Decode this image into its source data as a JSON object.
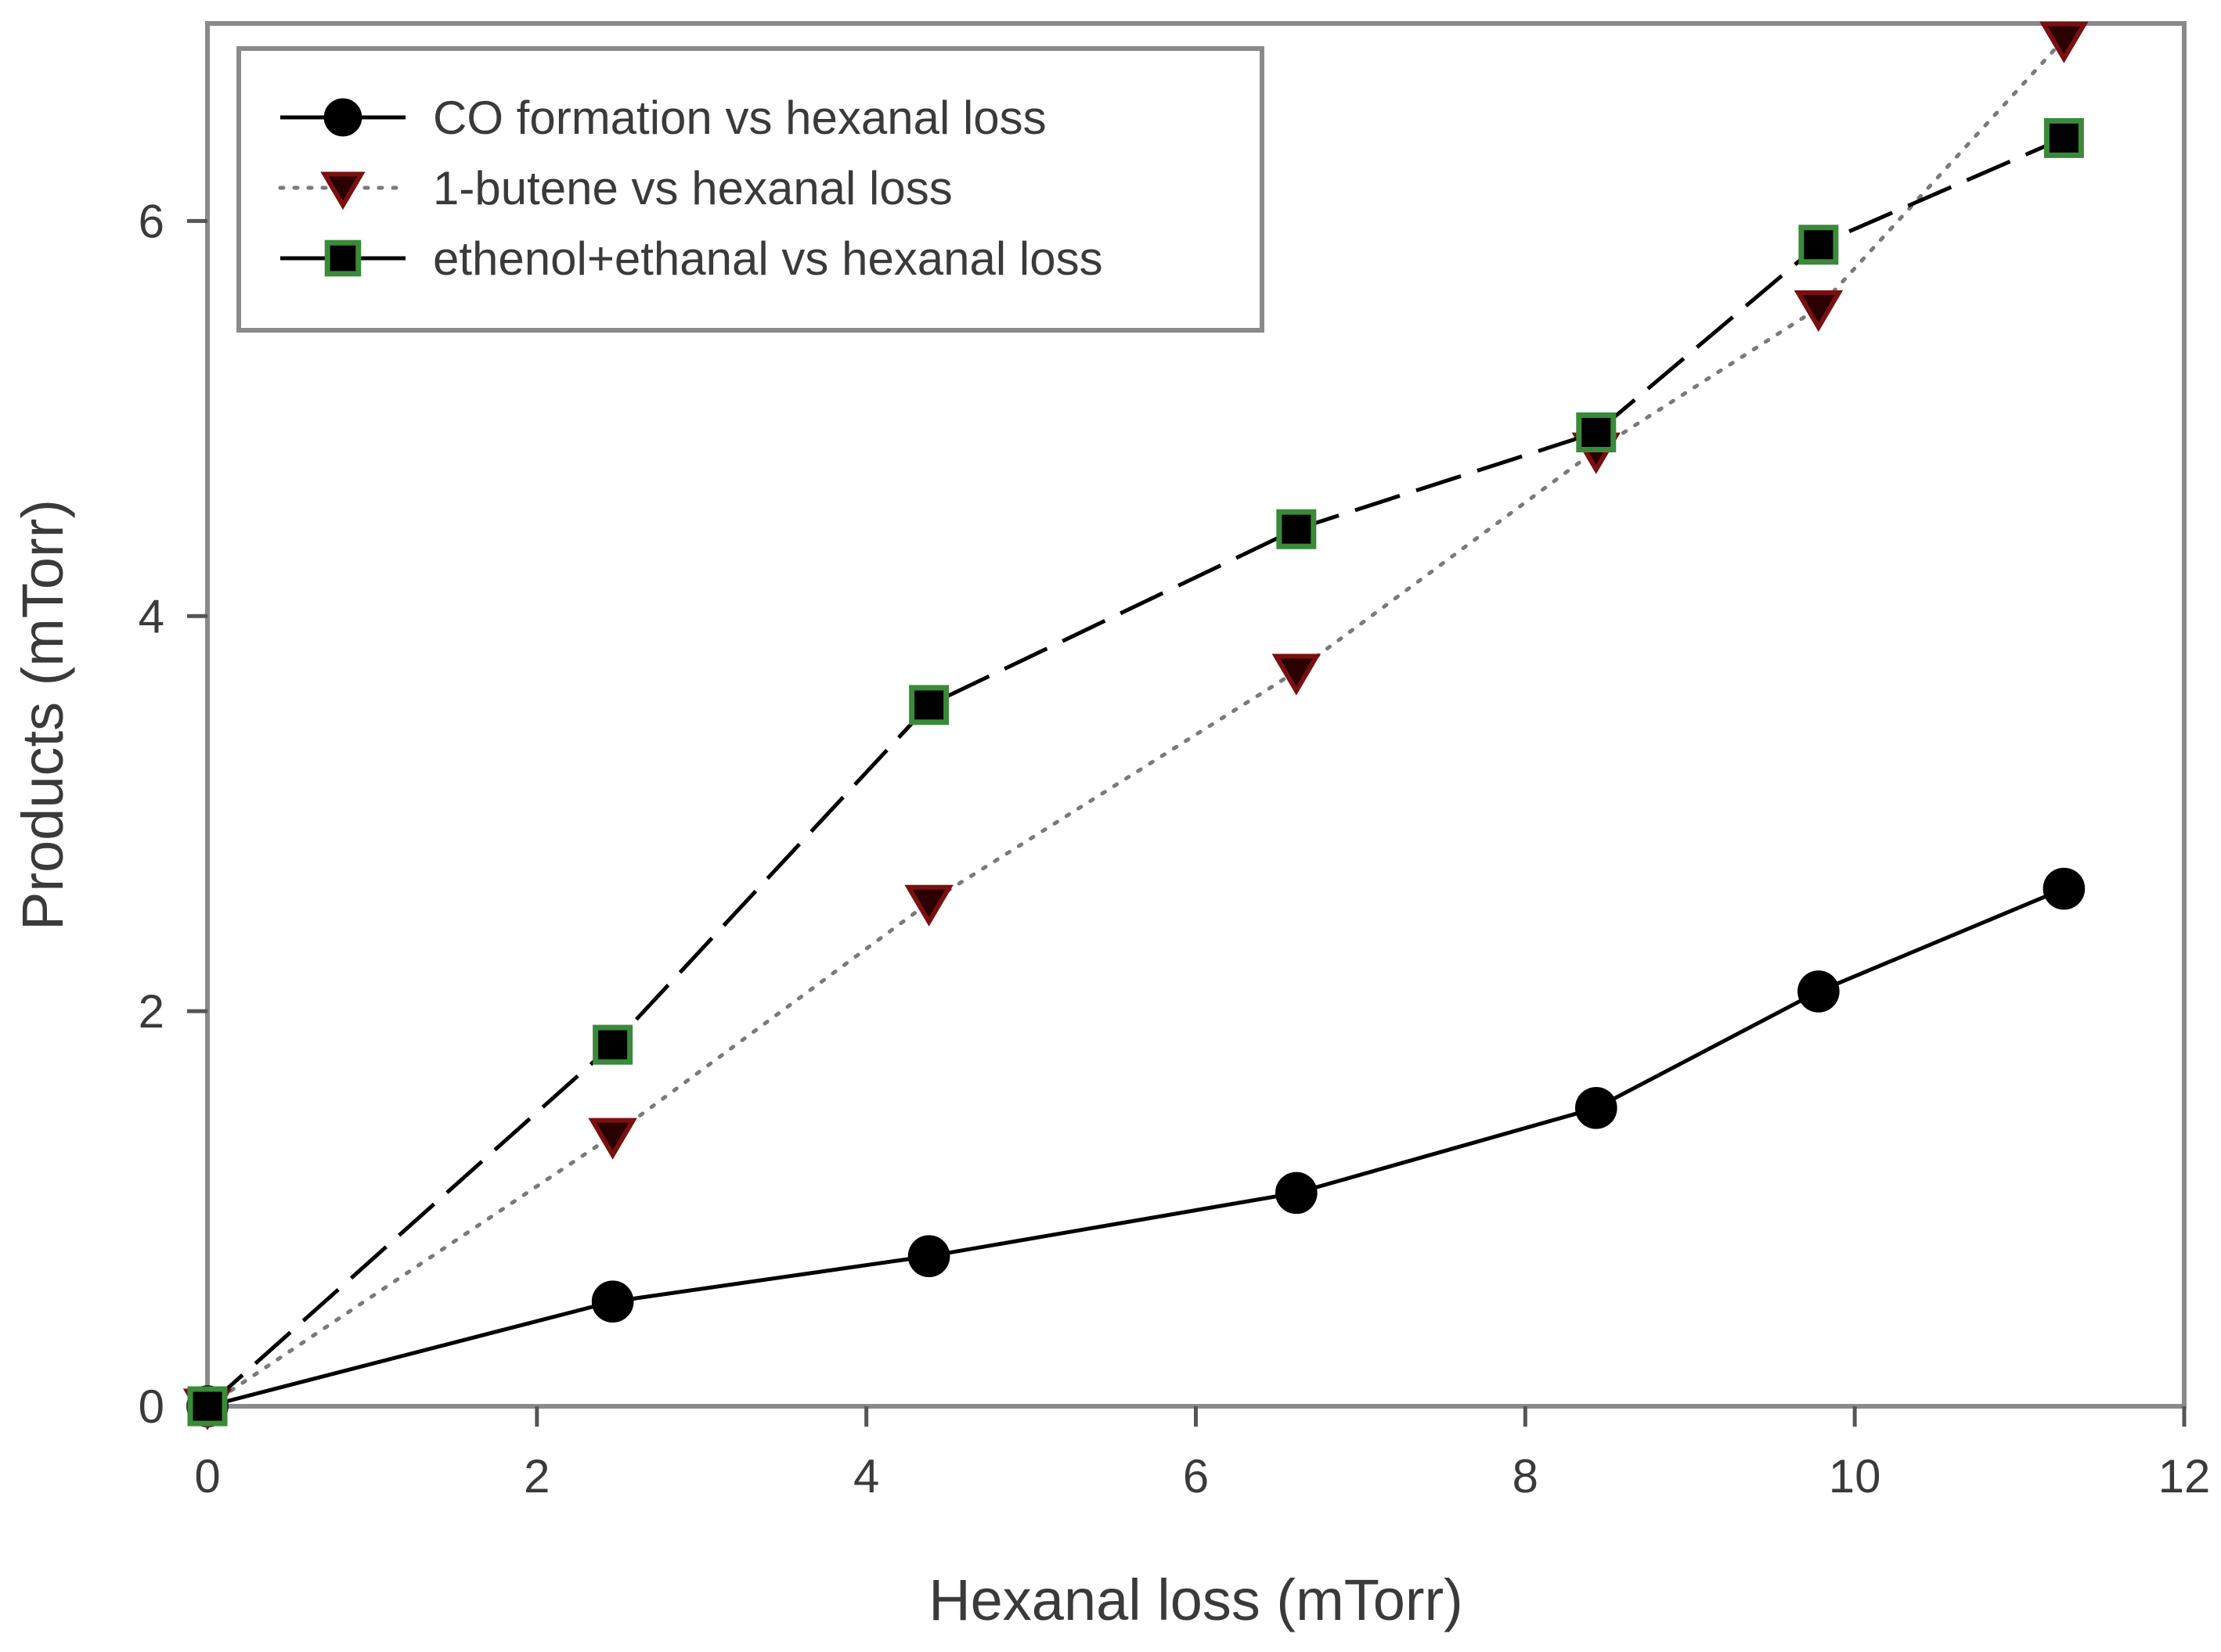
{
  "chart_data": {
    "type": "line",
    "title": "",
    "xlabel": "Hexanal loss (mTorr)",
    "ylabel": "Products (mTorr)",
    "xlim": [
      0,
      12
    ],
    "ylim": [
      0,
      7
    ],
    "xticks": [
      0,
      2,
      4,
      6,
      8,
      10,
      12
    ],
    "yticks": [
      0,
      2,
      4,
      6
    ],
    "grid": false,
    "legend_position": "top-left",
    "series": [
      {
        "name": "CO formation vs hexanal loss",
        "marker": "circle",
        "line_style": "solid",
        "color": "#000000",
        "marker_stroke": "#000000",
        "x": [
          0,
          2.46,
          4.38,
          6.61,
          8.43,
          9.78,
          11.27
        ],
        "y": [
          0,
          0.53,
          0.76,
          1.08,
          1.51,
          2.1,
          2.62
        ]
      },
      {
        "name": "1-butene vs hexanal loss",
        "marker": "triangle-down",
        "line_style": "dotted",
        "color": "#7a7a7a",
        "marker_fill": "#2a0000",
        "marker_stroke": "#7a1010",
        "x": [
          0,
          2.46,
          4.38,
          6.61,
          8.43,
          9.78,
          11.27
        ],
        "y": [
          0,
          1.37,
          2.55,
          3.72,
          4.84,
          5.56,
          6.92
        ]
      },
      {
        "name": "ethenol+ethanal vs hexanal loss",
        "marker": "square",
        "line_style": "dashed",
        "color": "#000000",
        "marker_fill": "#000000",
        "marker_stroke": "#3a8a3a",
        "x": [
          0,
          2.46,
          4.38,
          6.61,
          8.43,
          9.78,
          11.27
        ],
        "y": [
          0,
          1.83,
          3.55,
          4.44,
          4.93,
          5.88,
          6.42
        ]
      }
    ]
  }
}
